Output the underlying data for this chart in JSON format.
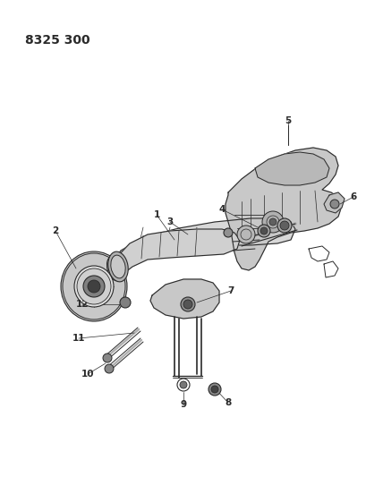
{
  "title": "8325 300",
  "bg_color": "#ffffff",
  "line_color": "#2a2a2a",
  "title_fontsize": 10,
  "label_fontsize": 7.5,
  "fig_w": 4.1,
  "fig_h": 5.33,
  "dpi": 100
}
